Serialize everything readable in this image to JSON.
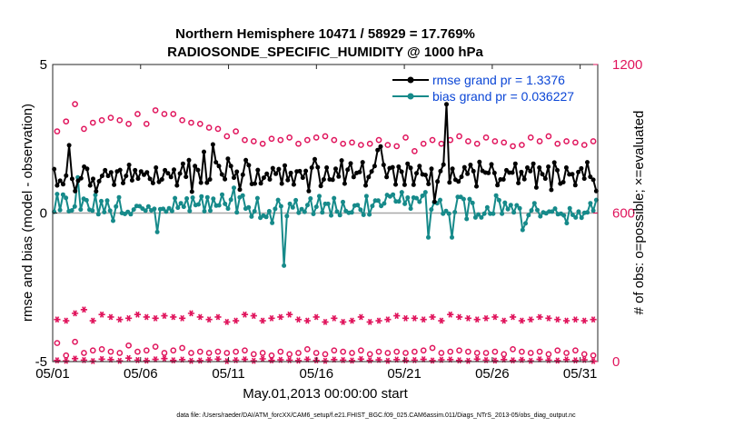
{
  "chart_data": {
    "type": "line",
    "title": "Northern Hemisphere 10471 / 58929 = 17.769%",
    "subtitle": "RADIOSONDE_SPECIFIC_HUMIDITY @ 1000 hPa",
    "xlabel": "May.01,2013 00:00:00 start",
    "ylabel": "rmse and bias (model - observation)",
    "ylabel_right": "# of obs: o=possible; ×=evaluated",
    "footnote": "data file: /Users/raeder/DAI/ATM_forcXX/CAM6_setup/f.e21.FHIST_BGC.f09_025.CAM6assim.011/Diags_NTrS_2013-05/obs_diag_output.nc",
    "xlim": [
      1,
      32
    ],
    "ylim": [
      -5,
      5
    ],
    "ylim_right": [
      0,
      1200
    ],
    "x_tick_values": [
      1,
      6,
      11,
      16,
      21,
      26,
      31
    ],
    "x_tick_labels": [
      "05/01",
      "05/06",
      "05/11",
      "05/16",
      "05/21",
      "05/26",
      "05/31"
    ],
    "y_ticks": [
      -5,
      0,
      5
    ],
    "y_ticks_right": [
      0,
      600,
      1200
    ],
    "colors": {
      "rmse": "#000000",
      "bias": "#168a8a",
      "obs": "#e0145c",
      "zero_line": "#a8a8a8",
      "legend_text": "#0b46d6"
    },
    "legend": [
      "rmse grand pr = 1.3376",
      "bias grand pr = 0.036227"
    ],
    "series": [
      {
        "name": "rmse",
        "marker": "filled-circle",
        "values": [
          1.48,
          0.93,
          1.09,
          0.97,
          1.26,
          2.28,
          1.15,
          0.74,
          1.09,
          1.17,
          1.56,
          1.49,
          0.93,
          1.15,
          0.73,
          1.07,
          1.25,
          1.44,
          1.25,
          1.37,
          0.95,
          1.4,
          1.45,
          1.01,
          1.25,
          1.62,
          1.1,
          1.44,
          1.16,
          1.4,
          1.29,
          1.37,
          1.15,
          1.01,
          1.53,
          1.05,
          1.13,
          1.44,
          1.34,
          1.21,
          1.46,
          0.93,
          1.33,
          1.66,
          1.22,
          1.78,
          0.72,
          1.58,
          1.45,
          1.02,
          2.06,
          1.02,
          1.13,
          2.31,
          1.71,
          1.58,
          1.3,
          1.14,
          1.83,
          1.58,
          1.19,
          1.39,
          0.79,
          1.29,
          1.78,
          1.61,
          0.98,
          0.99,
          1.45,
          1.0,
          1.19,
          1.32,
          1.13,
          1.51,
          1.32,
          1.48,
          0.99,
          1.6,
          1.11,
          1.35,
          0.96,
          1.4,
          1.41,
          1.19,
          1.42,
          0.74,
          1.53,
          1.81,
          1.54,
          0.91,
          1.13,
          1.53,
          1.13,
          1.12,
          1.49,
          1.23,
          1.77,
          0.99,
          1.46,
          1.67,
          1.21,
          1.35,
          1.38,
          1.71,
          0.93,
          1.21,
          1.4,
          1.58,
          2.12,
          2.24,
          1.62,
          1.21,
          1.51,
          1.54,
          0.96,
          1.56,
          1.39,
          0.95,
          1.66,
          1.52,
          0.95,
          1.34,
          1.58,
          1.3,
          1.28,
          0.98,
          1.49,
          0.38,
          1.06,
          1.41,
          1.63,
          3.66,
          1.03,
          1.49,
          1.12,
          1.06,
          1.22,
          1.54,
          1.32,
          1.62,
          1.41,
          0.9,
          1.72,
          1.42,
          1.36,
          1.35,
          1.64,
          1.35,
          0.94,
          1.13,
          1.13,
          1.44,
          1.36,
          1.36,
          1.66,
          1.01,
          1.38,
          1.14,
          1.53,
          1.41,
          1.66,
          0.86,
          1.53,
          1.31,
          1.16,
          1.56,
          0.78,
          1.7,
          1.44,
          0.99,
          1.04,
          1.53,
          1.3,
          1.31,
          0.94,
          1.38,
          1.5,
          1.16,
          1.71,
          1.22,
          1.12,
          0.74
        ]
      },
      {
        "name": "bias",
        "marker": "filled-circle",
        "values": [
          0.04,
          0.64,
          0.1,
          0.62,
          0.51,
          0.06,
          0.09,
          0.22,
          1.2,
          0.12,
          0.48,
          0.43,
          0.11,
          0.08,
          0.61,
          -0.04,
          0.4,
          0.03,
          0.42,
          0.08,
          -0.26,
          0.22,
          0.53,
          0.0,
          -0.03,
          0.04,
          -0.04,
          0.12,
          0.24,
          0.23,
          0.15,
          0.08,
          0.22,
          0.09,
          0.14,
          -0.64,
          0.13,
          0.14,
          0.05,
          0.16,
          0.07,
          0.5,
          0.18,
          0.33,
          0.21,
          0.49,
          0.07,
          0.52,
          0.27,
          0.29,
          0.56,
          0.06,
          0.53,
          0.08,
          0.48,
          0.25,
          0.26,
          0.62,
          0.31,
          0.15,
          0.45,
          0.85,
          0.02,
          0.53,
          0.59,
          0.15,
          0.19,
          -0.12,
          0.06,
          0.5,
          -0.16,
          -0.09,
          -0.13,
          0.06,
          -0.33,
          0.14,
          0.44,
          0.23,
          -1.77,
          -0.1,
          0.31,
          0.19,
          0.43,
          0.01,
          0.13,
          0.04,
          0.27,
          0.49,
          -0.03,
          0.21,
          0.57,
          0.02,
          0.31,
          0.31,
          -0.08,
          0.5,
          0.05,
          -0.07,
          0.37,
          0.07,
          0.01,
          0.02,
          0.25,
          0.27,
          0.11,
          -0.06,
          0.57,
          -0.05,
          0.24,
          0.42,
          0.42,
          0.24,
          0.32,
          0.61,
          0.56,
          0.62,
          0.39,
          0.39,
          0.7,
          0.31,
          0.52,
          0.15,
          0.52,
          0.5,
          0.38,
          0.58,
          0.7,
          -0.82,
          0.12,
          0.36,
          0.33,
          0.44,
          -0.02,
          0.07,
          -0.02,
          -0.82,
          0.03,
          0.54,
          0.54,
          0.47,
          -0.2,
          0.47,
          0.34,
          -0.15,
          -0.05,
          -0.15,
          -0.02,
          0.19,
          -0.02,
          -0.02,
          0.59,
          0.43,
          -0.02,
          0.35,
          0.13,
          0.27,
          0.02,
          0.26,
          0.16,
          -0.57,
          -0.35,
          -0.07,
          0.09,
          0.33,
          0.1,
          -0.11,
          0.02,
          -0.01,
          0.05,
          0.05,
          0.15,
          -0.04,
          -0.02,
          -0.08,
          -0.34,
          0.16,
          -0.06,
          -0.15,
          0.05,
          -0.16,
          0.01,
          0.02,
          0.33,
          0.08,
          0.44
        ]
      },
      {
        "name": "possible (upper)",
        "axis": "right",
        "marker": "open-circle",
        "values": [
          930,
          970,
          1040,
          940,
          965,
          975,
          985,
          975,
          960,
          1000,
          960,
          1015,
          1000,
          1000,
          975,
          965,
          960,
          945,
          940,
          910,
          930,
          895,
          890,
          880,
          900,
          895,
          905,
          880,
          895,
          905,
          910,
          895,
          880,
          885,
          875,
          880,
          895,
          875,
          870,
          905,
          850,
          880,
          895,
          880,
          895,
          910,
          890,
          880,
          905,
          890,
          885,
          870,
          875,
          905,
          890,
          910,
          880,
          890,
          885,
          875,
          890
        ]
      },
      {
        "name": "evaluated (upper)",
        "axis": "right",
        "marker": "asterisk",
        "values": [
          170,
          165,
          195,
          210,
          165,
          190,
          180,
          170,
          175,
          190,
          180,
          175,
          185,
          180,
          175,
          195,
          180,
          170,
          180,
          160,
          165,
          190,
          185,
          165,
          175,
          180,
          190,
          170,
          165,
          180,
          160,
          175,
          160,
          165,
          180,
          160,
          165,
          170,
          185,
          175,
          175,
          170,
          180,
          165,
          190,
          180,
          175,
          170,
          175,
          180,
          165,
          180,
          165,
          170,
          180,
          175,
          170,
          165,
          170,
          165,
          170
        ]
      },
      {
        "name": "possible (lower)",
        "axis": "right",
        "marker": "open-circle",
        "values": [
          75,
          25,
          80,
          35,
          45,
          50,
          40,
          35,
          65,
          40,
          45,
          60,
          35,
          45,
          55,
          35,
          40,
          35,
          40,
          35,
          40,
          45,
          30,
          35,
          25,
          40,
          30,
          35,
          50,
          35,
          30,
          45,
          40,
          35,
          45,
          30,
          40,
          35,
          40,
          35,
          40,
          45,
          55,
          35,
          40,
          45,
          40,
          35,
          35,
          40,
          30,
          50,
          40,
          35,
          40,
          30,
          45,
          35,
          45,
          30,
          25
        ]
      },
      {
        "name": "evaluated (lower)",
        "axis": "right",
        "marker": "asterisk",
        "values": [
          5,
          3,
          12,
          6,
          2,
          10,
          8,
          3,
          14,
          6,
          4,
          9,
          12,
          5,
          8,
          3,
          4,
          7,
          10,
          2,
          6,
          9,
          3,
          11,
          5,
          7,
          6,
          4,
          9,
          5,
          3,
          8,
          6,
          4,
          10,
          5,
          7,
          3,
          8,
          5,
          6,
          9,
          4,
          7,
          8,
          5,
          3,
          10,
          6,
          4,
          8,
          5,
          7,
          3,
          9,
          6,
          4,
          8,
          5,
          7,
          2
        ]
      }
    ]
  }
}
